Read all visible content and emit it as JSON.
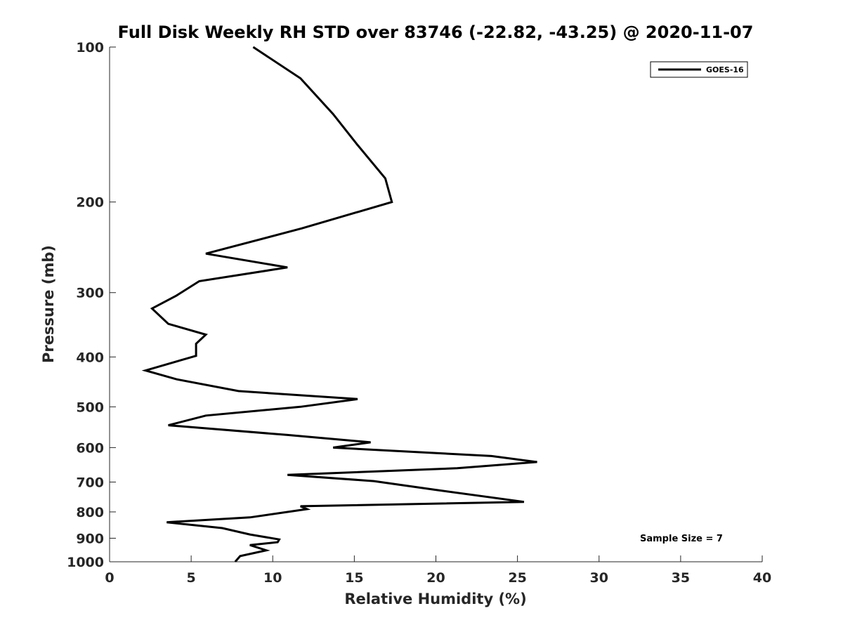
{
  "chart_data": {
    "type": "line",
    "title": "Full Disk Weekly RH STD over 83746 (-22.82, -43.25) @ 2020-11-07",
    "xlabel": "Relative Humidity (%)",
    "ylabel": "Pressure (mb)",
    "xlim": [
      0,
      40
    ],
    "ylim": [
      100,
      1000
    ],
    "yscale": "log",
    "y_reversed": true,
    "grid": false,
    "x_ticks": [
      0,
      5,
      10,
      15,
      20,
      25,
      30,
      35,
      40
    ],
    "y_ticks": [
      100,
      200,
      300,
      400,
      500,
      600,
      700,
      800,
      900,
      1000
    ],
    "legend": {
      "location": "top-right",
      "entries": [
        "GOES-16"
      ]
    },
    "annotation": "Sample Size = 7",
    "series": [
      {
        "name": "GOES-16",
        "color": "#000000",
        "x": [
          8.8,
          11.7,
          13.7,
          15.2,
          16.9,
          17.3,
          11.8,
          5.9,
          10.9,
          5.5,
          4.1,
          2.6,
          3.6,
          5.9,
          5.3,
          5.3,
          2.2,
          4.1,
          7.9,
          15.2,
          11.7,
          5.9,
          3.6,
          10.9,
          16.0,
          13.7,
          23.4,
          26.2,
          21.3,
          10.9,
          16.2,
          20.0,
          25.4,
          11.7,
          12.1,
          8.6,
          3.5,
          6.9,
          8.6,
          10.4,
          10.3,
          8.6,
          9.6,
          8.0,
          7.7
        ],
        "y": [
          100,
          115,
          135,
          155,
          180,
          200,
          225,
          252,
          268,
          285,
          304,
          322,
          345,
          362,
          377,
          398,
          425,
          442,
          466,
          483,
          500,
          520,
          543,
          567,
          586,
          600,
          623,
          640,
          658,
          678,
          697,
          725,
          765,
          780,
          790,
          820,
          838,
          860,
          885,
          905,
          916,
          928,
          950,
          975,
          1000
        ]
      }
    ]
  }
}
